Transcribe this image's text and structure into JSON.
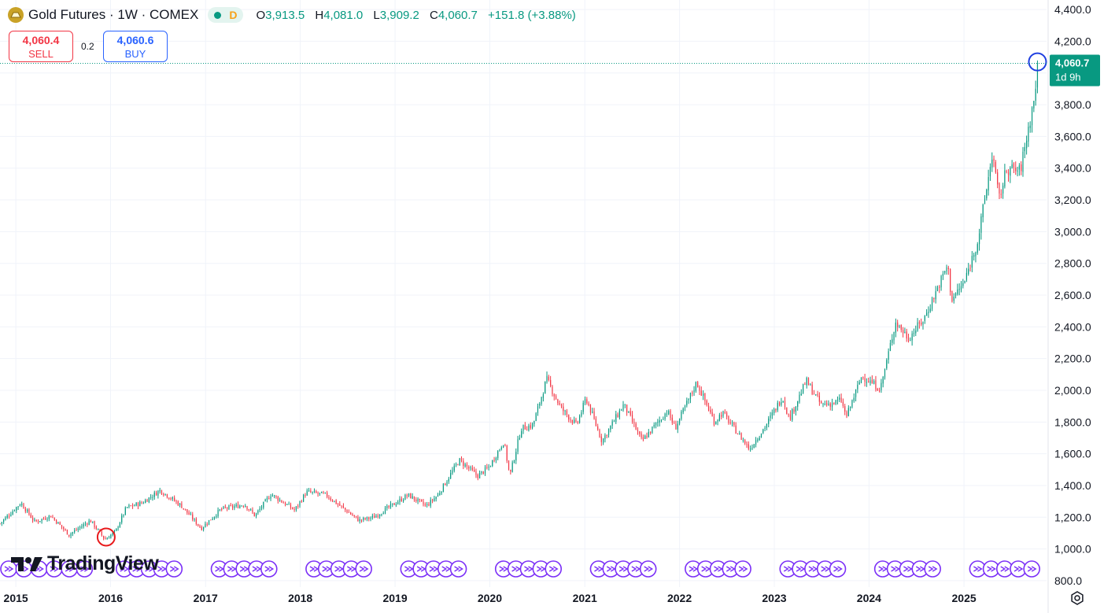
{
  "header": {
    "title": "Gold Futures · 1W · COMEX",
    "delay_flag": "D",
    "ohlc": [
      {
        "label": "O",
        "value": "3,913.5"
      },
      {
        "label": "H",
        "value": "4,081.0"
      },
      {
        "label": "L",
        "value": "3,909.2"
      },
      {
        "label": "C",
        "value": "4,060.7"
      }
    ],
    "change": "+151.8 (+3.88%)"
  },
  "trade": {
    "sell_price": "4,060.4",
    "sell_label": "SELL",
    "spread": "0.2",
    "buy_price": "4,060.6",
    "buy_label": "BUY"
  },
  "price_label": {
    "value": "4,060.7",
    "countdown": "1d 9h"
  },
  "logo": {
    "text": "TradingView"
  },
  "colors": {
    "up": "#089981",
    "down": "#f23645",
    "text": "#131722",
    "grid": "#f0f3fa",
    "annotation_red": "#e8191b",
    "annotation_blue": "#1f3fe0",
    "event": "#7b2ff7"
  },
  "icons": [
    "gold-coin-icon",
    "tradingview-logo-icon",
    "settings-gear-icon",
    "event-marker-icon"
  ],
  "chart_data": {
    "type": "candlestick",
    "interval": "1W",
    "x_range": [
      "2014-11-01",
      "2025-11-15"
    ],
    "ylim": [
      760,
      4460
    ],
    "y_scale": "linear",
    "grid": true,
    "y_ticks": [
      800,
      1000,
      1200,
      1400,
      1600,
      1800,
      2000,
      2200,
      2400,
      2600,
      2800,
      3000,
      3200,
      3400,
      3600,
      3800,
      4000,
      4200,
      4400
    ],
    "y_tick_labels": [
      "800.0",
      "1,000.0",
      "1,200.0",
      "1,400.0",
      "1,600.0",
      "1,800.0",
      "2,000.0",
      "2,200.0",
      "2,400.0",
      "2,600.0",
      "2,800.0",
      "3,000.0",
      "3,200.0",
      "3,400.0",
      "3,600.0",
      "3,800.0",
      "4,000.0",
      "4,200.0",
      "4,400.0"
    ],
    "x_ticks": [
      {
        "date": "2015-01-01",
        "label": "2015"
      },
      {
        "date": "2016-01-01",
        "label": "2016"
      },
      {
        "date": "2017-01-01",
        "label": "2017"
      },
      {
        "date": "2018-01-01",
        "label": "2018"
      },
      {
        "date": "2019-01-01",
        "label": "2019"
      },
      {
        "date": "2020-01-01",
        "label": "2020"
      },
      {
        "date": "2021-01-01",
        "label": "2021"
      },
      {
        "date": "2022-01-01",
        "label": "2022"
      },
      {
        "date": "2023-01-01",
        "label": "2023"
      },
      {
        "date": "2024-01-01",
        "label": "2024"
      },
      {
        "date": "2025-01-01",
        "label": "2025"
      }
    ],
    "close_path": [
      [
        "2014-11-01",
        1160
      ],
      [
        "2015-01-20",
        1290
      ],
      [
        "2015-03-15",
        1170
      ],
      [
        "2015-05-15",
        1210
      ],
      [
        "2015-07-25",
        1090
      ],
      [
        "2015-10-15",
        1180
      ],
      [
        "2015-12-10",
        1060
      ],
      [
        "2016-01-20",
        1110
      ],
      [
        "2016-03-01",
        1260
      ],
      [
        "2016-05-01",
        1290
      ],
      [
        "2016-07-10",
        1370
      ],
      [
        "2016-10-01",
        1270
      ],
      [
        "2016-12-15",
        1130
      ],
      [
        "2017-03-01",
        1250
      ],
      [
        "2017-06-01",
        1280
      ],
      [
        "2017-07-10",
        1210
      ],
      [
        "2017-09-10",
        1345
      ],
      [
        "2017-12-10",
        1245
      ],
      [
        "2018-01-25",
        1360
      ],
      [
        "2018-04-10",
        1340
      ],
      [
        "2018-08-15",
        1180
      ],
      [
        "2018-10-10",
        1200
      ],
      [
        "2019-02-20",
        1340
      ],
      [
        "2019-05-01",
        1270
      ],
      [
        "2019-06-15",
        1340
      ],
      [
        "2019-09-05",
        1560
      ],
      [
        "2019-11-15",
        1460
      ],
      [
        "2019-12-31",
        1520
      ],
      [
        "2020-02-24",
        1680
      ],
      [
        "2020-03-18",
        1460
      ],
      [
        "2020-05-01",
        1760
      ],
      [
        "2020-06-15",
        1780
      ],
      [
        "2020-08-07",
        2070
      ],
      [
        "2020-09-30",
        1890
      ],
      [
        "2020-11-30",
        1780
      ],
      [
        "2021-01-06",
        1950
      ],
      [
        "2021-03-08",
        1680
      ],
      [
        "2021-05-31",
        1910
      ],
      [
        "2021-08-09",
        1680
      ],
      [
        "2021-11-15",
        1870
      ],
      [
        "2021-12-15",
        1760
      ],
      [
        "2022-03-08",
        2050
      ],
      [
        "2022-05-15",
        1800
      ],
      [
        "2022-06-15",
        1860
      ],
      [
        "2022-09-28",
        1630
      ],
      [
        "2022-11-30",
        1780
      ],
      [
        "2023-02-01",
        1960
      ],
      [
        "2023-02-28",
        1820
      ],
      [
        "2023-05-04",
        2060
      ],
      [
        "2023-06-30",
        1910
      ],
      [
        "2023-08-20",
        1920
      ],
      [
        "2023-09-15",
        1940
      ],
      [
        "2023-10-05",
        1830
      ],
      [
        "2023-12-04",
        2090
      ],
      [
        "2024-02-14",
        2010
      ],
      [
        "2024-04-12",
        2430
      ],
      [
        "2024-06-01",
        2330
      ],
      [
        "2024-07-31",
        2450
      ],
      [
        "2024-10-30",
        2790
      ],
      [
        "2024-11-14",
        2570
      ],
      [
        "2025-01-02",
        2680
      ],
      [
        "2025-02-24",
        2950
      ],
      [
        "2025-04-21",
        3500
      ],
      [
        "2025-05-15",
        3200
      ],
      [
        "2025-06-15",
        3400
      ],
      [
        "2025-08-05",
        3380
      ],
      [
        "2025-09-30",
        3850
      ],
      [
        "2025-10-11",
        4060.7
      ]
    ],
    "last_price": 4060.7,
    "annotations": [
      {
        "type": "circle",
        "color": "red",
        "date": "2015-12-15",
        "price": 1075
      },
      {
        "type": "circle",
        "color": "blue",
        "date": "2025-10-11",
        "price": 4070
      }
    ],
    "event_marker_groups": [
      [
        "2014-11-01",
        "2015-11-20"
      ],
      [
        "2016-01-20",
        "2016-10-20"
      ],
      [
        "2017-01-20",
        "2017-10-20"
      ],
      [
        "2018-01-20",
        "2018-10-20"
      ],
      [
        "2019-01-20",
        "2019-10-20"
      ],
      [
        "2020-01-20",
        "2020-10-20"
      ],
      [
        "2021-01-20",
        "2021-10-20"
      ],
      [
        "2022-01-20",
        "2022-10-20"
      ],
      [
        "2023-01-20",
        "2023-10-20"
      ],
      [
        "2024-01-20",
        "2024-10-20"
      ],
      [
        "2025-01-20",
        "2025-11-10"
      ]
    ]
  }
}
